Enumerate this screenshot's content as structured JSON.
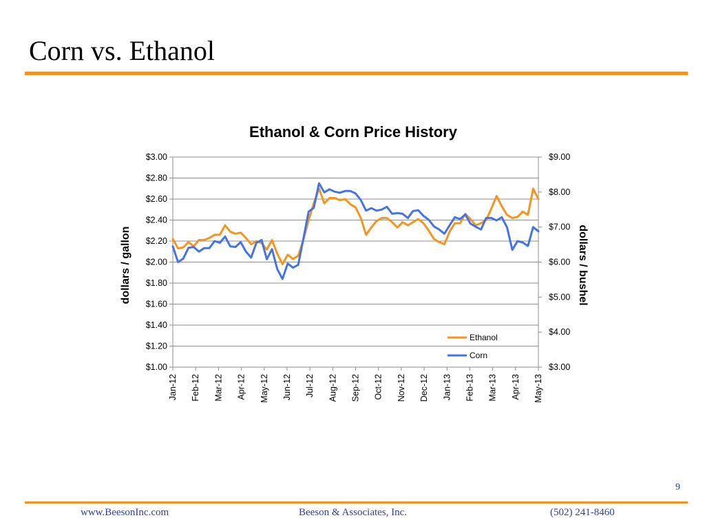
{
  "slide": {
    "title": "Corn vs. Ethanol",
    "page_number": "9",
    "footer_website": "www.BeesonInc.com",
    "footer_company": "Beeson & Associates, Inc.",
    "footer_phone": "(502) 241-8460"
  },
  "colors": {
    "accent_rule": "#F29222",
    "footer_text": "#2E3F9E",
    "ethanol": "#F7941E",
    "corn": "#4472E8",
    "gridline": "#8C8C8C"
  },
  "chart_data": {
    "type": "line",
    "title": "Ethanol & Corn Price History",
    "ylabel": "dollars / gallon",
    "y2label": "dollars / bushel",
    "ylim": [
      1.0,
      3.0
    ],
    "y2lim": [
      3.0,
      9.0
    ],
    "yticks": [
      "$1.00",
      "$1.20",
      "$1.40",
      "$1.60",
      "$1.80",
      "$2.00",
      "$2.20",
      "$2.40",
      "$2.60",
      "$2.80",
      "$3.00"
    ],
    "y2ticks": [
      "$3.00",
      "$4.00",
      "$5.00",
      "$6.00",
      "$7.00",
      "$8.00",
      "$9.00"
    ],
    "xticks": [
      "Jan-12",
      "Feb-12",
      "Mar-12",
      "Apr-12",
      "May-12",
      "Jun-12",
      "Jul-12",
      "Aug-12",
      "Sep-12",
      "Oct-12",
      "Nov-12",
      "Dec-12",
      "Jan-13",
      "Feb-13",
      "Mar-13",
      "Apr-13",
      "May-13"
    ],
    "grid": true,
    "legend_position": "bottom-right",
    "series": [
      {
        "name": "Ethanol",
        "axis": "left",
        "color": "#F7941E",
        "values": [
          2.22,
          2.13,
          2.14,
          2.19,
          2.15,
          2.21,
          2.21,
          2.23,
          2.26,
          2.26,
          2.35,
          2.29,
          2.27,
          2.28,
          2.23,
          2.17,
          2.2,
          2.18,
          2.12,
          2.21,
          2.08,
          1.98,
          2.07,
          2.03,
          2.06,
          2.21,
          2.4,
          2.56,
          2.7,
          2.56,
          2.61,
          2.61,
          2.59,
          2.6,
          2.55,
          2.52,
          2.42,
          2.26,
          2.33,
          2.39,
          2.42,
          2.42,
          2.38,
          2.33,
          2.38,
          2.35,
          2.38,
          2.41,
          2.37,
          2.3,
          2.22,
          2.19,
          2.17,
          2.29,
          2.37,
          2.37,
          2.46,
          2.41,
          2.35,
          2.37,
          2.4,
          2.51,
          2.63,
          2.53,
          2.45,
          2.42,
          2.43,
          2.48,
          2.45,
          2.7,
          2.6
        ]
      },
      {
        "name": "Corn",
        "axis": "right",
        "color": "#4472E8",
        "values": [
          6.45,
          6.0,
          6.1,
          6.41,
          6.43,
          6.3,
          6.4,
          6.4,
          6.6,
          6.55,
          6.73,
          6.45,
          6.43,
          6.57,
          6.3,
          6.13,
          6.55,
          6.63,
          6.08,
          6.37,
          5.8,
          5.52,
          5.96,
          5.84,
          5.92,
          6.66,
          7.44,
          7.55,
          8.25,
          7.99,
          8.08,
          8.01,
          7.98,
          8.03,
          8.03,
          7.96,
          7.77,
          7.47,
          7.54,
          7.47,
          7.5,
          7.58,
          7.38,
          7.4,
          7.38,
          7.26,
          7.46,
          7.48,
          7.32,
          7.21,
          7.02,
          6.93,
          6.81,
          7.05,
          7.28,
          7.23,
          7.36,
          7.1,
          7.01,
          6.93,
          7.26,
          7.26,
          7.19,
          7.28,
          6.99,
          6.35,
          6.6,
          6.56,
          6.46,
          7.0,
          6.88
        ]
      }
    ]
  }
}
